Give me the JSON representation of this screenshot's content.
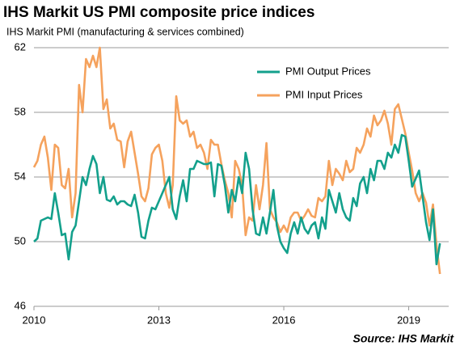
{
  "chart_data": {
    "type": "line",
    "title": "IHS Markit US PMI composite price indices",
    "subtitle": "IHS Markit PMI (manufacturing & services combined)",
    "source": "Source: IHS Markit",
    "x": [
      2010,
      2010.083,
      2010.167,
      2010.25,
      2010.333,
      2010.417,
      2010.5,
      2010.583,
      2010.667,
      2010.75,
      2010.833,
      2010.917,
      2011,
      2011.083,
      2011.167,
      2011.25,
      2011.333,
      2011.417,
      2011.5,
      2011.583,
      2011.667,
      2011.75,
      2011.833,
      2011.917,
      2012,
      2012.083,
      2012.167,
      2012.25,
      2012.333,
      2012.417,
      2012.5,
      2012.583,
      2012.667,
      2012.75,
      2012.833,
      2012.917,
      2013,
      2013.083,
      2013.167,
      2013.25,
      2013.333,
      2013.417,
      2013.5,
      2013.583,
      2013.667,
      2013.75,
      2013.833,
      2013.917,
      2014,
      2014.083,
      2014.167,
      2014.25,
      2014.333,
      2014.417,
      2014.5,
      2014.583,
      2014.667,
      2014.75,
      2014.833,
      2014.917,
      2015,
      2015.083,
      2015.167,
      2015.25,
      2015.333,
      2015.417,
      2015.5,
      2015.583,
      2015.667,
      2015.75,
      2015.833,
      2015.917,
      2016,
      2016.083,
      2016.167,
      2016.25,
      2016.333,
      2016.417,
      2016.5,
      2016.583,
      2016.667,
      2016.75,
      2016.833,
      2016.917,
      2017,
      2017.083,
      2017.167,
      2017.25,
      2017.333,
      2017.417,
      2017.5,
      2017.583,
      2017.667,
      2017.75,
      2017.833,
      2017.917,
      2018,
      2018.083,
      2018.167,
      2018.25,
      2018.333,
      2018.417,
      2018.5,
      2018.583,
      2018.667,
      2018.75,
      2018.833,
      2018.917,
      2019,
      2019.083,
      2019.167,
      2019.25,
      2019.333,
      2019.417,
      2019.5,
      2019.583,
      2019.667,
      2019.75
    ],
    "series": [
      {
        "name": "PMI Output Prices",
        "color": "#13a08c",
        "values": [
          50.0,
          50.2,
          51.3,
          51.4,
          51.5,
          51.4,
          53.0,
          51.8,
          50.4,
          50.5,
          48.9,
          50.6,
          51.0,
          52.5,
          54.0,
          53.5,
          54.5,
          55.3,
          54.8,
          53.0,
          54.0,
          52.6,
          52.5,
          52.8,
          52.3,
          52.5,
          52.5,
          52.3,
          52.2,
          52.9,
          51.8,
          50.3,
          50.2,
          51.3,
          52.1,
          52.0,
          52.5,
          53.0,
          53.5,
          54.0,
          52.0,
          51.4,
          52.8,
          53.8,
          52.5,
          54.5,
          54.5,
          55.0,
          54.9,
          54.8,
          54.8,
          54.9,
          52.8,
          54.8,
          54.7,
          53.5,
          51.8,
          53.2,
          52.5,
          54.0,
          53.0,
          55.5,
          54.5,
          52.0,
          50.5,
          50.4,
          51.5,
          50.5,
          51.8,
          53.2,
          51.0,
          50.0,
          49.6,
          49.3,
          50.5,
          51.2,
          50.5,
          51.5,
          50.8,
          50.5,
          51.0,
          51.2,
          50.2,
          51.5,
          50.8,
          53.2,
          52.5,
          51.8,
          53.0,
          52.0,
          51.5,
          51.3,
          52.7,
          52.2,
          53.6,
          54.0,
          53.0,
          54.5,
          53.8,
          55.0,
          55.0,
          54.5,
          55.5,
          55.2,
          56.0,
          55.5,
          56.6,
          56.5,
          55.0,
          53.4,
          53.9,
          54.4,
          52.8,
          51.2,
          50.1,
          52.0,
          48.6,
          49.9
        ]
      },
      {
        "name": "PMI Input Prices",
        "color": "#f5a25d",
        "values": [
          54.6,
          55.0,
          56.0,
          56.5,
          55.2,
          53.2,
          56.0,
          55.8,
          53.5,
          53.3,
          54.5,
          51.5,
          53.0,
          59.7,
          58.0,
          61.3,
          60.8,
          61.5,
          60.8,
          62.0,
          58.2,
          58.8,
          57.0,
          57.3,
          56.3,
          56.2,
          54.6,
          56.2,
          56.8,
          55.5,
          54.2,
          52.8,
          52.5,
          53.3,
          55.4,
          55.8,
          56.0,
          55.0,
          53.0,
          52.1,
          53.5,
          59.0,
          57.5,
          57.3,
          57.5,
          56.5,
          56.8,
          55.8,
          56.0,
          55.5,
          54.5,
          56.3,
          56.0,
          56.0,
          54.8,
          53.8,
          53.0,
          51.5,
          55.0,
          54.5,
          53.5,
          50.4,
          51.5,
          51.3,
          53.5,
          52.0,
          53.5,
          56.1,
          52.0,
          51.5,
          51.2,
          50.6,
          51.0,
          50.6,
          51.5,
          51.8,
          51.8,
          51.3,
          51.6,
          52.0,
          51.6,
          51.5,
          52.7,
          52.5,
          52.8,
          55.0,
          53.5,
          54.5,
          54.2,
          53.8,
          55.0,
          54.3,
          54.5,
          55.8,
          55.5,
          56.0,
          57.0,
          56.5,
          57.8,
          57.2,
          57.5,
          58.1,
          57.3,
          56.0,
          58.2,
          58.5,
          57.6,
          56.7,
          55.5,
          54.4,
          53.0,
          52.5,
          53.0,
          52.4,
          51.0,
          52.3,
          49.8,
          48.0
        ]
      }
    ],
    "xlim": [
      2010,
      2019.96
    ],
    "xticks": [
      2010,
      2013,
      2016,
      2019
    ],
    "ylim": [
      46,
      62
    ],
    "yticks": [
      46,
      50,
      54,
      58,
      62
    ],
    "grid": true
  }
}
